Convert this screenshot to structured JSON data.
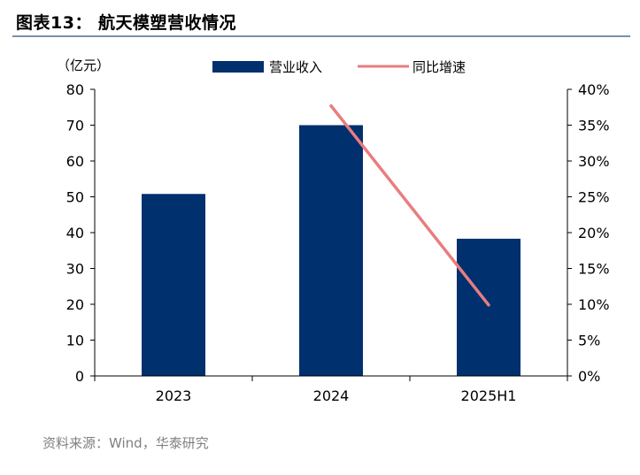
{
  "figure": {
    "title": "图表13：   航天模塑营收情况",
    "source": "资料来源：Wind，华泰研究"
  },
  "chart_data": {
    "type": "bar",
    "categories": [
      "2023",
      "2024",
      "2025H1"
    ],
    "left_axis_unit": "（亿元）",
    "ylim": [
      0,
      80
    ],
    "y_ticks": [
      "0",
      "10",
      "20",
      "30",
      "40",
      "50",
      "60",
      "70",
      "80"
    ],
    "y2lim": [
      0,
      40
    ],
    "y2_ticks": [
      "0%",
      "5%",
      "10%",
      "15%",
      "20%",
      "25%",
      "30%",
      "35%",
      "40%"
    ],
    "legend_position": "top",
    "series": [
      {
        "name": "营业收入",
        "type": "bar",
        "axis": "left",
        "color": "#00306e",
        "values": [
          50.8,
          70.0,
          38.3
        ]
      },
      {
        "name": "同比增速",
        "type": "line",
        "axis": "right",
        "color": "#e87d80",
        "values": [
          null,
          37.7,
          9.9
        ]
      }
    ],
    "grid": false
  }
}
